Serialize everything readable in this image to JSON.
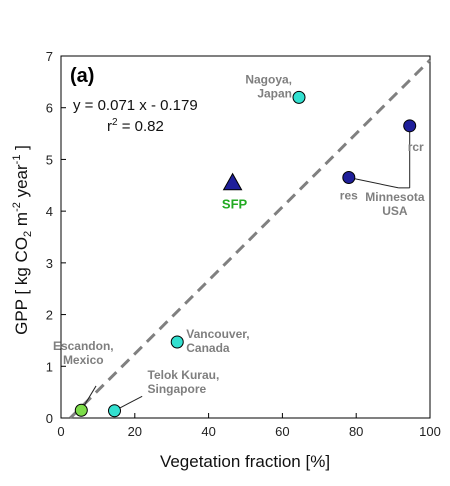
{
  "chart_data": {
    "type": "scatter",
    "panel_label": "(a)",
    "xlabel": "Vegetation fraction [%]",
    "ylabel": {
      "prefix": "GPP [ kg CO",
      "sub": "2",
      "mid": " m",
      "sup1": "-2",
      "mid2": " year",
      "sup2": "-1",
      "suffix": " ]"
    },
    "xlim": [
      0,
      100
    ],
    "ylim": [
      0,
      7
    ],
    "xticks": [
      "0",
      "20",
      "40",
      "60",
      "80",
      "100"
    ],
    "yticks": [
      "0",
      "1",
      "2",
      "3",
      "4",
      "5",
      "6",
      "7"
    ],
    "fit": {
      "slope": 0.071,
      "intercept": -0.179,
      "equation": "y = 0.071 x - 0.179",
      "r2_prefix": "r",
      "r2_sup": "2",
      "r2_value": " = 0.82",
      "color": "#808080"
    },
    "points": [
      {
        "x": 64.5,
        "y": 6.2,
        "color": "#33e0d0",
        "marker": "circle",
        "label": [
          "Nagoya,",
          "Japan"
        ]
      },
      {
        "x": 31.5,
        "y": 1.47,
        "color": "#33e0d0",
        "marker": "circle",
        "label": [
          "Vancouver,",
          "Canada"
        ]
      },
      {
        "x": 14.5,
        "y": 0.14,
        "color": "#33e0d0",
        "marker": "circle",
        "label": [
          "Telok Kurau,",
          "Singapore"
        ]
      },
      {
        "x": 5.5,
        "y": 0.15,
        "color": "#7ddc4a",
        "marker": "circle",
        "label": [
          "Escandon,",
          "Mexico"
        ]
      },
      {
        "x": 78,
        "y": 4.65,
        "color": "#1f1f9a",
        "marker": "circle",
        "label": [
          "res"
        ]
      },
      {
        "x": 94.5,
        "y": 5.65,
        "color": "#1f1f9a",
        "marker": "circle",
        "label": [
          "rcr"
        ]
      },
      {
        "x": 46.5,
        "y": 4.55,
        "color": "#1f1f9a",
        "marker": "triangle",
        "label": [
          "SFP"
        ]
      }
    ],
    "group_label": [
      "Minnesota",
      "USA"
    ],
    "grid": false,
    "legend": "none"
  }
}
